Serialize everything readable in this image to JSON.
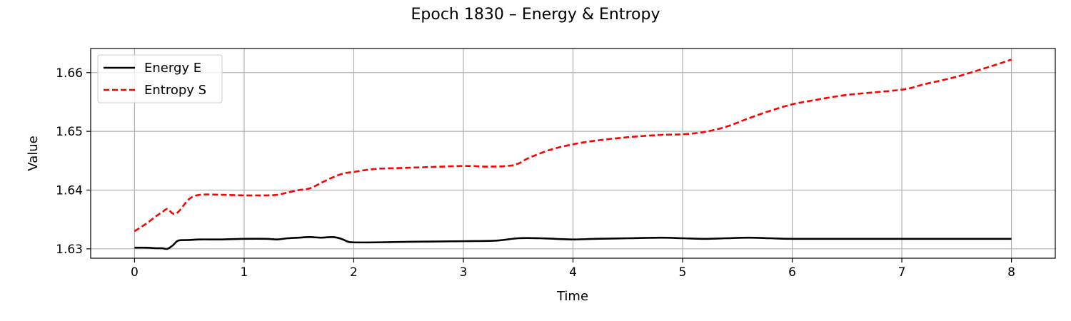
{
  "chart_data": {
    "type": "line",
    "title": "Epoch 1830 – Energy & Entropy",
    "xlabel": "Time",
    "ylabel": "Value",
    "xlim": [
      -0.4,
      8.4
    ],
    "ylim": [
      1.6284,
      1.6641
    ],
    "xticks": [
      0,
      1,
      2,
      3,
      4,
      5,
      6,
      7,
      8
    ],
    "yticks": [
      1.63,
      1.64,
      1.65,
      1.66
    ],
    "ytick_labels": [
      "1.63",
      "1.64",
      "1.65",
      "1.66"
    ],
    "grid": true,
    "legend_position": "top-left",
    "series": [
      {
        "name": "Energy E",
        "color": "#000000",
        "style": "solid",
        "x": [
          0,
          0.1,
          0.2,
          0.25,
          0.3,
          0.35,
          0.4,
          0.5,
          0.6,
          0.8,
          1.0,
          1.2,
          1.3,
          1.4,
          1.5,
          1.6,
          1.7,
          1.8,
          1.85,
          1.9,
          1.95,
          2.0,
          2.2,
          2.5,
          3.0,
          3.3,
          3.5,
          3.7,
          4.0,
          4.2,
          4.5,
          4.8,
          5.0,
          5.2,
          5.4,
          5.6,
          5.8,
          6.0,
          6.5,
          7.0,
          7.2,
          7.6,
          8.0
        ],
        "y": [
          1.6302,
          1.6302,
          1.6301,
          1.6301,
          1.63,
          1.6306,
          1.6314,
          1.6315,
          1.6316,
          1.6316,
          1.6317,
          1.6317,
          1.6316,
          1.6318,
          1.6319,
          1.632,
          1.6319,
          1.632,
          1.6319,
          1.6316,
          1.6312,
          1.6311,
          1.6311,
          1.6312,
          1.6313,
          1.6314,
          1.6318,
          1.6318,
          1.6316,
          1.6317,
          1.6318,
          1.6319,
          1.6318,
          1.6317,
          1.6318,
          1.6319,
          1.6318,
          1.6317,
          1.6317,
          1.6317,
          1.6317,
          1.6317,
          1.6317
        ]
      },
      {
        "name": "Entropy S",
        "color": "#ff0000",
        "style": "dashed",
        "x": [
          0,
          0.1,
          0.2,
          0.25,
          0.3,
          0.35,
          0.4,
          0.5,
          0.6,
          0.8,
          1.0,
          1.2,
          1.3,
          1.4,
          1.5,
          1.6,
          1.7,
          1.8,
          1.9,
          2.0,
          2.2,
          2.5,
          3.0,
          3.2,
          3.4,
          3.5,
          3.6,
          3.8,
          4.0,
          4.2,
          4.5,
          4.8,
          5.0,
          5.2,
          5.4,
          5.6,
          5.8,
          6.0,
          6.2,
          6.5,
          7.0,
          7.2,
          7.5,
          7.8,
          8.0
        ],
        "y": [
          1.633,
          1.6342,
          1.6356,
          1.6362,
          1.6368,
          1.636,
          1.6363,
          1.6385,
          1.6392,
          1.6392,
          1.6391,
          1.6391,
          1.6392,
          1.6396,
          1.64,
          1.6403,
          1.6412,
          1.6421,
          1.6428,
          1.6431,
          1.6436,
          1.6438,
          1.6441,
          1.644,
          1.6441,
          1.6445,
          1.6455,
          1.6469,
          1.6478,
          1.6484,
          1.649,
          1.6494,
          1.6495,
          1.6499,
          1.6508,
          1.6522,
          1.6535,
          1.6546,
          1.6553,
          1.6562,
          1.6571,
          1.658,
          1.6593,
          1.661,
          1.6622
        ]
      }
    ]
  }
}
